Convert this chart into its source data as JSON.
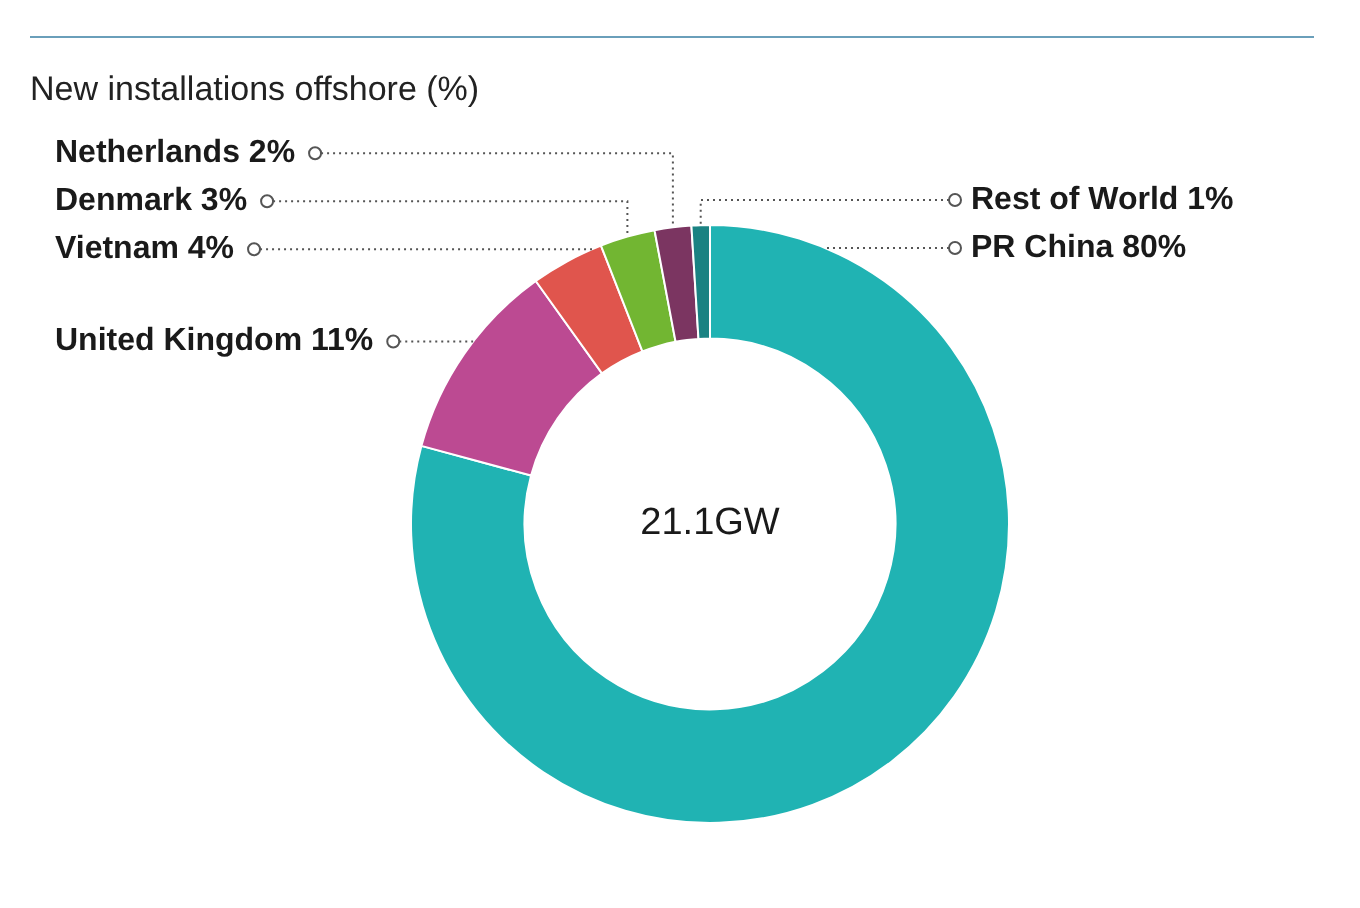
{
  "chart_data": {
    "type": "donut",
    "title": "New installations offshore (%)",
    "categories": [
      "PR China",
      "United Kingdom",
      "Vietnam",
      "Denmark",
      "Netherlands",
      "Rest of World"
    ],
    "values": [
      80,
      11,
      4,
      3,
      2,
      1
    ],
    "value_labels": [
      "80%",
      "11%",
      "4%",
      "3%",
      "2%",
      "1%"
    ],
    "colors": [
      "#20b3b3",
      "#bc4a92",
      "#e0554d",
      "#72b632",
      "#7b3561",
      "#1a8282"
    ],
    "annotations": [
      "21.1GW"
    ],
    "legend": false
  }
}
